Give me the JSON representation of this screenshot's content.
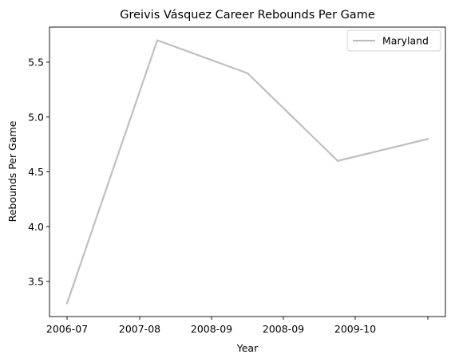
{
  "chart_data": {
    "type": "line",
    "title": "Greivis Vásquez Career Rebounds Per Game",
    "xlabel": "Year",
    "ylabel": "Rebounds Per Game",
    "x_tick_labels": [
      "2006-07",
      "2007-08",
      "2008-09",
      "2008-09",
      "2009-10",
      ""
    ],
    "ylim": [
      3.18,
      5.82
    ],
    "y_ticks": [
      3.5,
      4.0,
      4.5,
      5.0,
      5.5
    ],
    "y_tick_labels": [
      "3.5",
      "4.0",
      "4.5",
      "5.0",
      "5.5"
    ],
    "grid": false,
    "legend_position": "top-right",
    "series": [
      {
        "name": "Maryland",
        "color": "#bfbfbf",
        "values": [
          3.3,
          5.7,
          5.4,
          4.6,
          4.8
        ]
      }
    ]
  }
}
